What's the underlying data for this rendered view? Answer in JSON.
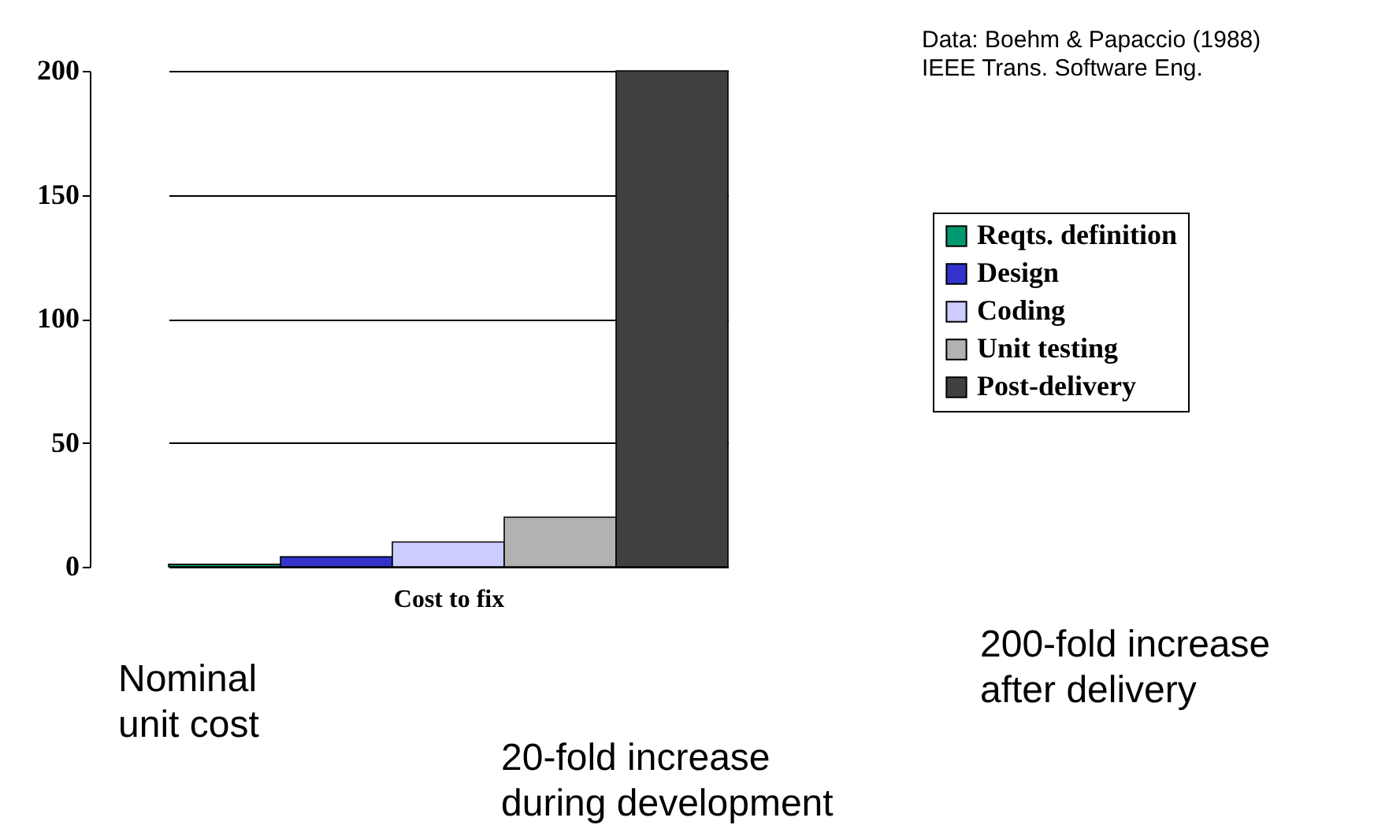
{
  "chart_data": {
    "type": "bar",
    "xlabel": "Cost to fix",
    "categories": [
      null,
      null,
      null,
      null,
      null
    ],
    "series": [
      {
        "name": "Reqts. definition",
        "color": "#00996f",
        "values": [
          1,
          null,
          null,
          null,
          null
        ]
      },
      {
        "name": "Design",
        "color": "#3333cc",
        "values": [
          null,
          4,
          null,
          null,
          null
        ]
      },
      {
        "name": "Coding",
        "color": "#ccccff",
        "values": [
          null,
          null,
          10,
          null,
          null
        ]
      },
      {
        "name": "Unit testing",
        "color": "#b2b2b2",
        "values": [
          null,
          null,
          null,
          20,
          null
        ]
      },
      {
        "name": "Post-delivery",
        "color": "#404040",
        "values": [
          null,
          null,
          null,
          null,
          200
        ]
      }
    ],
    "ylim": [
      0,
      200
    ],
    "yticks": [
      0,
      50,
      100,
      150,
      200
    ],
    "grid": "y",
    "legend": "right",
    "annotations": [
      "Data: Boehm & Papaccio (1988)\nIEEE Trans. Software Eng.",
      "Nominal\nunit cost",
      "20-fold increase\nduring development",
      "200-fold increase\nafter delivery"
    ]
  }
}
